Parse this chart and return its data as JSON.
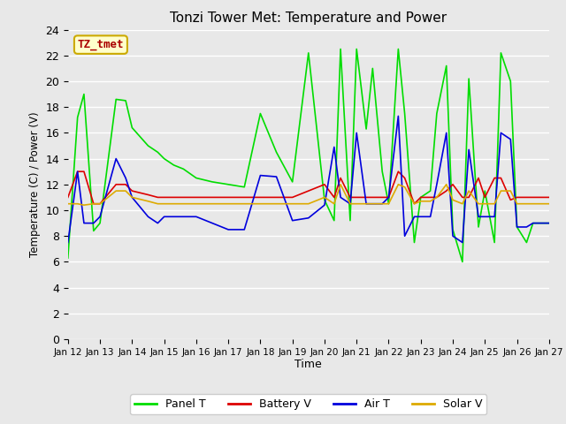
{
  "title": "Tonzi Tower Met: Temperature and Power",
  "xlabel": "Time",
  "ylabel": "Temperature (C) / Power (V)",
  "ylim": [
    0,
    24
  ],
  "yticks": [
    0,
    2,
    4,
    6,
    8,
    10,
    12,
    14,
    16,
    18,
    20,
    22,
    24
  ],
  "annotation_text": "TZ_tmet",
  "annotation_color": "#aa0000",
  "annotation_bg": "#ffffcc",
  "annotation_edge": "#ccaa00",
  "bg_color": "#e8e8e8",
  "plot_bg": "#e8e8e8",
  "grid_color": "#ffffff",
  "xtick_labels": [
    "Jan 12",
    "Jan 13",
    "Jan 14",
    "Jan 15",
    "Jan 16",
    "Jan 17",
    "Jan 18",
    "Jan 19",
    "Jan 20",
    "Jan 21",
    "Jan 22",
    "Jan 23",
    "Jan 24",
    "Jan 25",
    "Jan 26",
    "Jan 27"
  ],
  "panel_T_x": [
    0,
    0.3,
    0.5,
    0.8,
    1.0,
    1.5,
    1.8,
    2.0,
    2.5,
    2.8,
    3.0,
    3.3,
    3.6,
    4.0,
    4.5,
    5.0,
    5.5,
    6.0,
    6.5,
    7.0,
    7.5,
    8.0,
    8.3,
    8.5,
    8.8,
    9.0,
    9.3,
    9.5,
    9.8,
    10.0,
    10.3,
    10.5,
    10.8,
    11.0,
    11.3,
    11.5,
    11.8,
    12.0,
    12.3,
    12.5,
    12.8,
    13.0,
    13.3,
    13.5,
    13.8,
    14.0,
    14.3,
    14.5,
    14.8,
    15.0
  ],
  "panel_T": [
    6.3,
    17.2,
    19.0,
    8.4,
    9.0,
    18.6,
    18.5,
    16.4,
    15.0,
    14.5,
    14.0,
    13.5,
    13.2,
    12.5,
    12.2,
    12.0,
    11.8,
    17.5,
    14.5,
    12.2,
    22.2,
    10.8,
    9.2,
    22.5,
    9.2,
    22.5,
    16.3,
    21.0,
    13.0,
    10.5,
    22.5,
    17.5,
    7.5,
    11.0,
    11.5,
    17.5,
    21.2,
    8.5,
    6.0,
    20.2,
    8.7,
    11.5,
    7.5,
    22.2,
    20.0,
    8.7,
    7.5,
    9.0,
    9.0,
    9.0
  ],
  "battery_V": [
    11.0,
    13.0,
    13.0,
    10.5,
    10.5,
    12.0,
    12.0,
    11.5,
    11.2,
    11.0,
    11.0,
    11.0,
    11.0,
    11.0,
    11.0,
    11.0,
    11.0,
    11.0,
    11.0,
    11.0,
    11.5,
    12.0,
    11.0,
    12.5,
    11.0,
    11.0,
    11.0,
    11.0,
    11.0,
    11.0,
    13.0,
    12.5,
    10.5,
    11.0,
    11.0,
    11.0,
    11.5,
    12.0,
    11.0,
    11.0,
    12.5,
    11.0,
    12.5,
    12.5,
    10.8,
    11.0,
    11.0,
    11.0,
    11.0,
    11.0
  ],
  "air_T": [
    7.5,
    13.0,
    9.0,
    9.0,
    9.5,
    14.0,
    12.5,
    11.0,
    9.5,
    9.0,
    9.5,
    9.5,
    9.5,
    9.5,
    9.0,
    8.5,
    8.5,
    12.7,
    12.6,
    9.2,
    9.4,
    10.4,
    14.9,
    11.0,
    10.5,
    16.0,
    10.5,
    10.5,
    10.5,
    11.0,
    17.3,
    8.0,
    9.5,
    9.5,
    9.5,
    12.0,
    16.0,
    8.0,
    7.5,
    14.7,
    9.5,
    9.5,
    9.5,
    16.0,
    15.5,
    8.7,
    8.7,
    9.0,
    9.0,
    9.0
  ],
  "solar_V": [
    10.5,
    10.5,
    10.4,
    10.5,
    10.5,
    11.5,
    11.5,
    11.0,
    10.7,
    10.5,
    10.5,
    10.5,
    10.5,
    10.5,
    10.5,
    10.5,
    10.5,
    10.5,
    10.5,
    10.5,
    10.5,
    11.0,
    10.5,
    12.0,
    10.5,
    10.5,
    10.5,
    10.5,
    10.5,
    10.5,
    12.0,
    11.8,
    10.5,
    10.7,
    10.7,
    11.0,
    12.0,
    10.8,
    10.5,
    11.5,
    10.5,
    10.5,
    10.5,
    11.5,
    11.5,
    10.5,
    10.5,
    10.5,
    10.5,
    10.5
  ],
  "colors": {
    "panel_T": "#00dd00",
    "battery_V": "#dd0000",
    "air_T": "#0000dd",
    "solar_V": "#ddaa00"
  },
  "legend_labels": [
    "Panel T",
    "Battery V",
    "Air T",
    "Solar V"
  ]
}
